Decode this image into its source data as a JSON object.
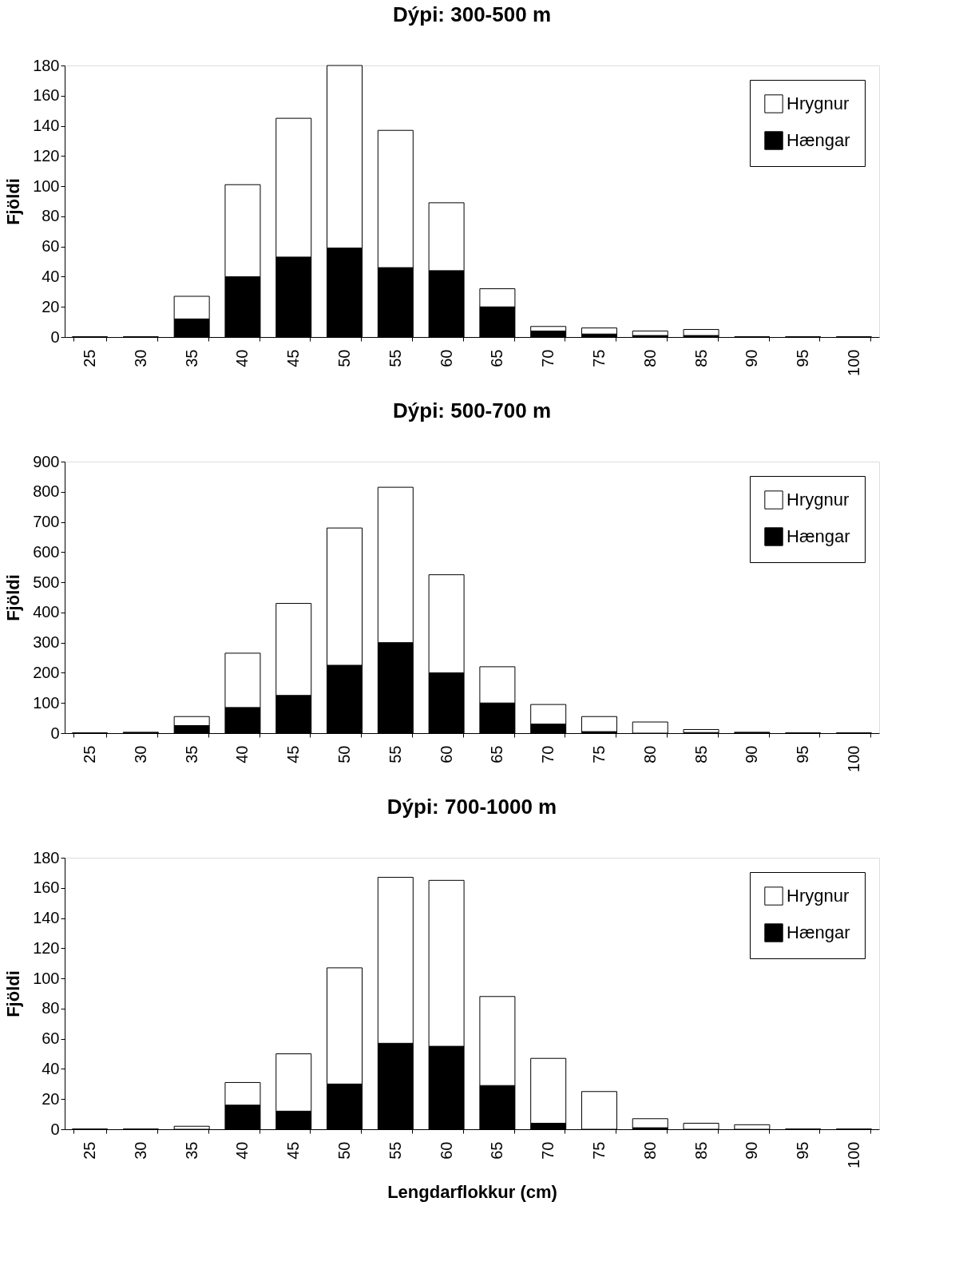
{
  "chart_data": [
    {
      "type": "bar",
      "title": "Dýpi:  300-500  m",
      "ylabel": "Fjöldi",
      "stacked": true,
      "legend": "top right",
      "grid": false,
      "categories": [
        "25",
        "30",
        "35",
        "40",
        "45",
        "50",
        "55",
        "60",
        "65",
        "70",
        "75",
        "80",
        "85",
        "90",
        "95",
        "100"
      ],
      "ylim": [
        0,
        180
      ],
      "yticks": [
        0,
        20,
        40,
        60,
        80,
        100,
        120,
        140,
        160,
        180
      ],
      "series": [
        {
          "name": "Hængar",
          "color": "#000000",
          "values": [
            0,
            0,
            12,
            40,
            53,
            59,
            46,
            44,
            20,
            4,
            2,
            1,
            1,
            0,
            0,
            0
          ]
        },
        {
          "name": "Hrygnur",
          "color": "#ffffff",
          "values": [
            0,
            0,
            15,
            61,
            92,
            121,
            91,
            45,
            12,
            3,
            4,
            3,
            4,
            0,
            0,
            0
          ]
        }
      ]
    },
    {
      "type": "bar",
      "title": "Dýpi:  500-700  m",
      "ylabel": "Fjöldi",
      "stacked": true,
      "legend": "top right",
      "grid": false,
      "categories": [
        "25",
        "30",
        "35",
        "40",
        "45",
        "50",
        "55",
        "60",
        "65",
        "70",
        "75",
        "80",
        "85",
        "90",
        "95",
        "100"
      ],
      "ylim": [
        0,
        900
      ],
      "yticks": [
        0,
        100,
        200,
        300,
        400,
        500,
        600,
        700,
        800,
        900
      ],
      "series": [
        {
          "name": "Hængar",
          "color": "#000000",
          "values": [
            0,
            1,
            25,
            85,
            125,
            225,
            300,
            200,
            100,
            30,
            5,
            null,
            2,
            1,
            0,
            0
          ]
        },
        {
          "name": "Hrygnur",
          "color": "#ffffff",
          "values": [
            0,
            2,
            30,
            180,
            305,
            455,
            515,
            325,
            120,
            65,
            50,
            37,
            10,
            2,
            0,
            0
          ]
        }
      ]
    },
    {
      "type": "bar",
      "title": "Dýpi:  700-1000  m",
      "ylabel": "Fjöldi",
      "xlabel": "Lengdarflokkur  (cm)",
      "stacked": true,
      "legend": "top right",
      "grid": false,
      "categories": [
        "25",
        "30",
        "35",
        "40",
        "45",
        "50",
        "55",
        "60",
        "65",
        "70",
        "75",
        "80",
        "85",
        "90",
        "95",
        "100"
      ],
      "ylim": [
        0,
        180
      ],
      "yticks": [
        0,
        20,
        40,
        60,
        80,
        100,
        120,
        140,
        160,
        180
      ],
      "series": [
        {
          "name": "Hængar",
          "color": "#000000",
          "values": [
            0,
            0,
            0,
            16,
            12,
            30,
            57,
            55,
            29,
            4,
            0,
            1,
            0,
            0,
            0,
            0
          ]
        },
        {
          "name": "Hrygnur",
          "color": "#ffffff",
          "values": [
            0,
            0,
            2,
            15,
            38,
            77,
            110,
            110,
            59,
            43,
            25,
            6,
            4,
            3,
            0,
            0
          ]
        }
      ]
    }
  ]
}
